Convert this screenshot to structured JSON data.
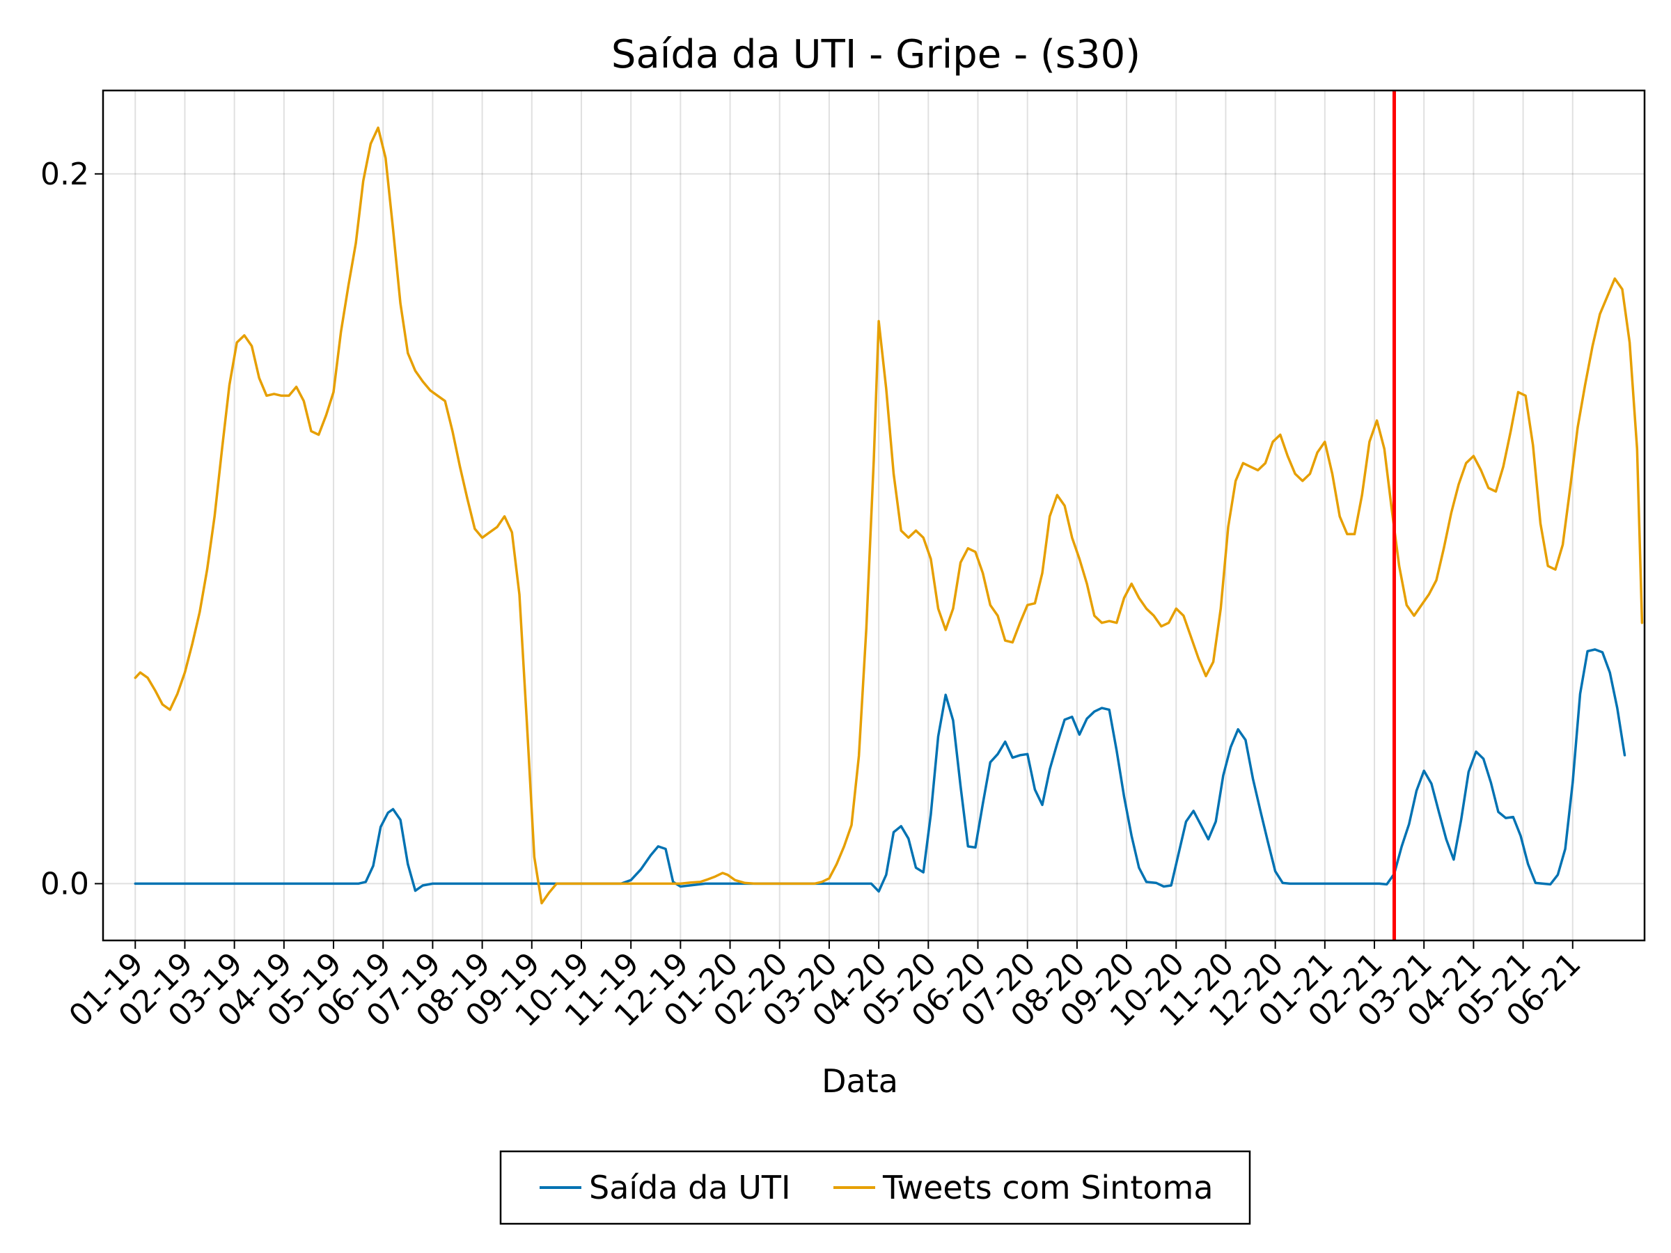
{
  "chart_data": {
    "type": "line",
    "title": "Saída da UTI - Gripe - (s30)",
    "xlabel": "Data",
    "ylabel": "",
    "x_tick_labels": [
      "01-19",
      "02-19",
      "03-19",
      "04-19",
      "05-19",
      "06-19",
      "07-19",
      "08-19",
      "09-19",
      "10-19",
      "11-19",
      "12-19",
      "01-20",
      "02-20",
      "03-20",
      "04-20",
      "05-20",
      "06-20",
      "07-20",
      "08-20",
      "09-20",
      "10-20",
      "11-20",
      "12-20",
      "01-21",
      "02-21",
      "03-21",
      "04-21",
      "05-21",
      "06-21"
    ],
    "y_ticks": [
      0.0,
      0.2
    ],
    "y_tick_labels": [
      "0.0",
      "0.2"
    ],
    "xlim": [
      -0.65,
      30.45
    ],
    "ylim": [
      -0.016,
      0.2235
    ],
    "grid": true,
    "legend_position": "bottom-center",
    "vline": {
      "x": 25.4,
      "color": "#ff0000"
    },
    "series": [
      {
        "name": "Saída da UTI",
        "color": "#0072b2",
        "points": [
          [
            0,
            0
          ],
          [
            4.5,
            0
          ],
          [
            4.65,
            0.0005
          ],
          [
            4.8,
            0.005
          ],
          [
            4.95,
            0.016
          ],
          [
            5.1,
            0.02
          ],
          [
            5.2,
            0.021
          ],
          [
            5.35,
            0.018
          ],
          [
            5.5,
            0.0055
          ],
          [
            5.65,
            -0.002
          ],
          [
            5.8,
            -0.0005
          ],
          [
            6,
            0
          ],
          [
            8.5,
            0
          ],
          [
            9.5,
            0
          ],
          [
            9.8,
            0
          ],
          [
            10,
            0.001
          ],
          [
            10.2,
            0.004
          ],
          [
            10.4,
            0.008
          ],
          [
            10.55,
            0.0105
          ],
          [
            10.7,
            0.0098
          ],
          [
            10.85,
            0.0005
          ],
          [
            11,
            -0.0008
          ],
          [
            11.5,
            0
          ],
          [
            14.5,
            0
          ],
          [
            14.85,
            0
          ],
          [
            15,
            -0.0022
          ],
          [
            15.15,
            0.0025
          ],
          [
            15.3,
            0.0145
          ],
          [
            15.45,
            0.0162
          ],
          [
            15.6,
            0.0127
          ],
          [
            15.75,
            0.0045
          ],
          [
            15.9,
            0.0032
          ],
          [
            16.05,
            0.0195
          ],
          [
            16.2,
            0.0415
          ],
          [
            16.35,
            0.0532
          ],
          [
            16.5,
            0.046
          ],
          [
            16.65,
            0.0275
          ],
          [
            16.8,
            0.0105
          ],
          [
            16.95,
            0.0102
          ],
          [
            17.1,
            0.0225
          ],
          [
            17.25,
            0.0342
          ],
          [
            17.4,
            0.0365
          ],
          [
            17.55,
            0.04
          ],
          [
            17.7,
            0.0355
          ],
          [
            17.85,
            0.0362
          ],
          [
            18,
            0.0365
          ],
          [
            18.15,
            0.0265
          ],
          [
            18.3,
            0.0222
          ],
          [
            18.45,
            0.0322
          ],
          [
            18.6,
            0.0395
          ],
          [
            18.75,
            0.0462
          ],
          [
            18.9,
            0.047
          ],
          [
            19.05,
            0.042
          ],
          [
            19.2,
            0.0465
          ],
          [
            19.35,
            0.0485
          ],
          [
            19.5,
            0.0495
          ],
          [
            19.65,
            0.049
          ],
          [
            19.8,
            0.0375
          ],
          [
            19.95,
            0.0245
          ],
          [
            20.1,
            0.0135
          ],
          [
            20.25,
            0.0045
          ],
          [
            20.4,
            0.0005
          ],
          [
            20.6,
            0.0002
          ],
          [
            20.75,
            -0.0008
          ],
          [
            20.9,
            -0.0005
          ],
          [
            21.05,
            0.0085
          ],
          [
            21.2,
            0.0175
          ],
          [
            21.35,
            0.0205
          ],
          [
            21.5,
            0.0165
          ],
          [
            21.65,
            0.0125
          ],
          [
            21.8,
            0.0175
          ],
          [
            21.95,
            0.0305
          ],
          [
            22.1,
            0.0385
          ],
          [
            22.25,
            0.0435
          ],
          [
            22.4,
            0.0405
          ],
          [
            22.55,
            0.0295
          ],
          [
            22.7,
            0.0205
          ],
          [
            22.85,
            0.0118
          ],
          [
            23,
            0.0035
          ],
          [
            23.15,
            0.0002
          ],
          [
            23.3,
            0
          ],
          [
            25.1,
            0
          ],
          [
            25.25,
            -0.0002
          ],
          [
            25.4,
            0.0028
          ],
          [
            25.55,
            0.0105
          ],
          [
            25.7,
            0.0168
          ],
          [
            25.85,
            0.0262
          ],
          [
            26,
            0.0318
          ],
          [
            26.15,
            0.0282
          ],
          [
            26.3,
            0.0202
          ],
          [
            26.45,
            0.0125
          ],
          [
            26.6,
            0.0068
          ],
          [
            26.75,
            0.018
          ],
          [
            26.9,
            0.0315
          ],
          [
            27.05,
            0.0372
          ],
          [
            27.2,
            0.0352
          ],
          [
            27.35,
            0.0285
          ],
          [
            27.5,
            0.0202
          ],
          [
            27.65,
            0.0185
          ],
          [
            27.8,
            0.0188
          ],
          [
            27.95,
            0.0135
          ],
          [
            28.1,
            0.0055
          ],
          [
            28.25,
            0.0002
          ],
          [
            28.55,
            -0.0002
          ],
          [
            28.7,
            0.0025
          ],
          [
            28.85,
            0.0098
          ],
          [
            29,
            0.0285
          ],
          [
            29.15,
            0.0535
          ],
          [
            29.3,
            0.0655
          ],
          [
            29.45,
            0.066
          ],
          [
            29.6,
            0.0652
          ],
          [
            29.75,
            0.0595
          ],
          [
            29.9,
            0.0495
          ],
          [
            30.05,
            0.0362
          ]
        ]
      },
      {
        "name": "Tweets com Sintoma",
        "color": "#e69f00",
        "points": [
          [
            0,
            0.058
          ],
          [
            0.1,
            0.0595
          ],
          [
            0.25,
            0.058
          ],
          [
            0.4,
            0.0545
          ],
          [
            0.55,
            0.0505
          ],
          [
            0.7,
            0.049
          ],
          [
            0.85,
            0.0535
          ],
          [
            1,
            0.0595
          ],
          [
            1.15,
            0.0675
          ],
          [
            1.3,
            0.0765
          ],
          [
            1.45,
            0.0885
          ],
          [
            1.6,
            0.1035
          ],
          [
            1.75,
            0.1225
          ],
          [
            1.9,
            0.1405
          ],
          [
            2.05,
            0.1525
          ],
          [
            2.2,
            0.1545
          ],
          [
            2.35,
            0.1515
          ],
          [
            2.5,
            0.1425
          ],
          [
            2.65,
            0.1375
          ],
          [
            2.8,
            0.138
          ],
          [
            2.95,
            0.1375
          ],
          [
            3.1,
            0.1375
          ],
          [
            3.25,
            0.14
          ],
          [
            3.4,
            0.136
          ],
          [
            3.55,
            0.1275
          ],
          [
            3.7,
            0.1265
          ],
          [
            3.85,
            0.132
          ],
          [
            4,
            0.1385
          ],
          [
            4.15,
            0.1555
          ],
          [
            4.3,
            0.1685
          ],
          [
            4.45,
            0.1805
          ],
          [
            4.6,
            0.198
          ],
          [
            4.75,
            0.2085
          ],
          [
            4.9,
            0.213
          ],
          [
            5.05,
            0.2045
          ],
          [
            5.2,
            0.1845
          ],
          [
            5.35,
            0.1635
          ],
          [
            5.5,
            0.1495
          ],
          [
            5.65,
            0.1445
          ],
          [
            5.8,
            0.1415
          ],
          [
            5.95,
            0.139
          ],
          [
            6.1,
            0.1375
          ],
          [
            6.25,
            0.136
          ],
          [
            6.4,
            0.1275
          ],
          [
            6.55,
            0.1175
          ],
          [
            6.7,
            0.1085
          ],
          [
            6.85,
            0.1
          ],
          [
            7,
            0.0975
          ],
          [
            7.15,
            0.099
          ],
          [
            7.3,
            0.1005
          ],
          [
            7.45,
            0.1035
          ],
          [
            7.6,
            0.099
          ],
          [
            7.75,
            0.0815
          ],
          [
            7.9,
            0.0455
          ],
          [
            8.05,
            0.0075
          ],
          [
            8.2,
            -0.0055
          ],
          [
            8.35,
            -0.0025
          ],
          [
            8.5,
            0
          ],
          [
            9.5,
            0
          ],
          [
            10,
            0
          ],
          [
            11,
            0
          ],
          [
            11.2,
            0.0003
          ],
          [
            11.4,
            0.0005
          ],
          [
            11.55,
            0.0012
          ],
          [
            11.7,
            0.002
          ],
          [
            11.85,
            0.003
          ],
          [
            11.95,
            0.0025
          ],
          [
            12.1,
            0.001
          ],
          [
            12.3,
            0.0002
          ],
          [
            12.5,
            0
          ],
          [
            13.5,
            0
          ],
          [
            13.7,
            0
          ],
          [
            13.85,
            0.0005
          ],
          [
            14,
            0.0015
          ],
          [
            14.15,
            0.0055
          ],
          [
            14.3,
            0.0105
          ],
          [
            14.45,
            0.0165
          ],
          [
            14.6,
            0.036
          ],
          [
            14.75,
            0.072
          ],
          [
            14.9,
            0.1195
          ],
          [
            15,
            0.1585
          ],
          [
            15.15,
            0.1395
          ],
          [
            15.3,
            0.1155
          ],
          [
            15.45,
            0.0995
          ],
          [
            15.6,
            0.0975
          ],
          [
            15.75,
            0.0995
          ],
          [
            15.9,
            0.0975
          ],
          [
            16.05,
            0.0915
          ],
          [
            16.2,
            0.0775
          ],
          [
            16.35,
            0.0715
          ],
          [
            16.5,
            0.0775
          ],
          [
            16.65,
            0.0905
          ],
          [
            16.8,
            0.0945
          ],
          [
            16.95,
            0.0935
          ],
          [
            17.1,
            0.0875
          ],
          [
            17.25,
            0.0785
          ],
          [
            17.4,
            0.0755
          ],
          [
            17.55,
            0.0685
          ],
          [
            17.7,
            0.068
          ],
          [
            17.85,
            0.0735
          ],
          [
            18,
            0.0785
          ],
          [
            18.15,
            0.079
          ],
          [
            18.3,
            0.0875
          ],
          [
            18.45,
            0.1035
          ],
          [
            18.6,
            0.1095
          ],
          [
            18.75,
            0.1065
          ],
          [
            18.9,
            0.0975
          ],
          [
            19.05,
            0.0915
          ],
          [
            19.2,
            0.0845
          ],
          [
            19.35,
            0.0755
          ],
          [
            19.5,
            0.0735
          ],
          [
            19.65,
            0.074
          ],
          [
            19.8,
            0.0735
          ],
          [
            19.95,
            0.0805
          ],
          [
            20.1,
            0.0845
          ],
          [
            20.25,
            0.0805
          ],
          [
            20.4,
            0.0775
          ],
          [
            20.55,
            0.0755
          ],
          [
            20.7,
            0.0725
          ],
          [
            20.85,
            0.0735
          ],
          [
            21,
            0.0775
          ],
          [
            21.15,
            0.0755
          ],
          [
            21.3,
            0.0695
          ],
          [
            21.45,
            0.0635
          ],
          [
            21.6,
            0.0585
          ],
          [
            21.75,
            0.0625
          ],
          [
            21.9,
            0.0775
          ],
          [
            22.05,
            0.1005
          ],
          [
            22.2,
            0.1135
          ],
          [
            22.35,
            0.1185
          ],
          [
            22.5,
            0.1175
          ],
          [
            22.65,
            0.1165
          ],
          [
            22.8,
            0.1185
          ],
          [
            22.95,
            0.1245
          ],
          [
            23.1,
            0.1265
          ],
          [
            23.25,
            0.1205
          ],
          [
            23.4,
            0.1155
          ],
          [
            23.55,
            0.1135
          ],
          [
            23.7,
            0.1155
          ],
          [
            23.85,
            0.1215
          ],
          [
            24,
            0.1245
          ],
          [
            24.15,
            0.1155
          ],
          [
            24.3,
            0.1035
          ],
          [
            24.45,
            0.0985
          ],
          [
            24.6,
            0.0985
          ],
          [
            24.75,
            0.1095
          ],
          [
            24.9,
            0.1245
          ],
          [
            25.05,
            0.1305
          ],
          [
            25.2,
            0.1225
          ],
          [
            25.35,
            0.1055
          ],
          [
            25.5,
            0.0895
          ],
          [
            25.65,
            0.0785
          ],
          [
            25.8,
            0.0755
          ],
          [
            25.95,
            0.0785
          ],
          [
            26.1,
            0.0815
          ],
          [
            26.25,
            0.0855
          ],
          [
            26.4,
            0.0945
          ],
          [
            26.55,
            0.1045
          ],
          [
            26.7,
            0.1125
          ],
          [
            26.85,
            0.1185
          ],
          [
            27,
            0.1205
          ],
          [
            27.15,
            0.1165
          ],
          [
            27.3,
            0.1115
          ],
          [
            27.45,
            0.1105
          ],
          [
            27.6,
            0.1175
          ],
          [
            27.75,
            0.1275
          ],
          [
            27.9,
            0.1385
          ],
          [
            28.05,
            0.1375
          ],
          [
            28.2,
            0.1235
          ],
          [
            28.35,
            0.1015
          ],
          [
            28.5,
            0.0895
          ],
          [
            28.65,
            0.0885
          ],
          [
            28.8,
            0.0955
          ],
          [
            28.95,
            0.1115
          ],
          [
            29.1,
            0.1285
          ],
          [
            29.25,
            0.1405
          ],
          [
            29.4,
            0.1515
          ],
          [
            29.55,
            0.1605
          ],
          [
            29.7,
            0.1655
          ],
          [
            29.85,
            0.1705
          ],
          [
            30,
            0.1675
          ],
          [
            30.15,
            0.1525
          ],
          [
            30.3,
            0.1225
          ],
          [
            30.4,
            0.0735
          ]
        ]
      }
    ]
  }
}
